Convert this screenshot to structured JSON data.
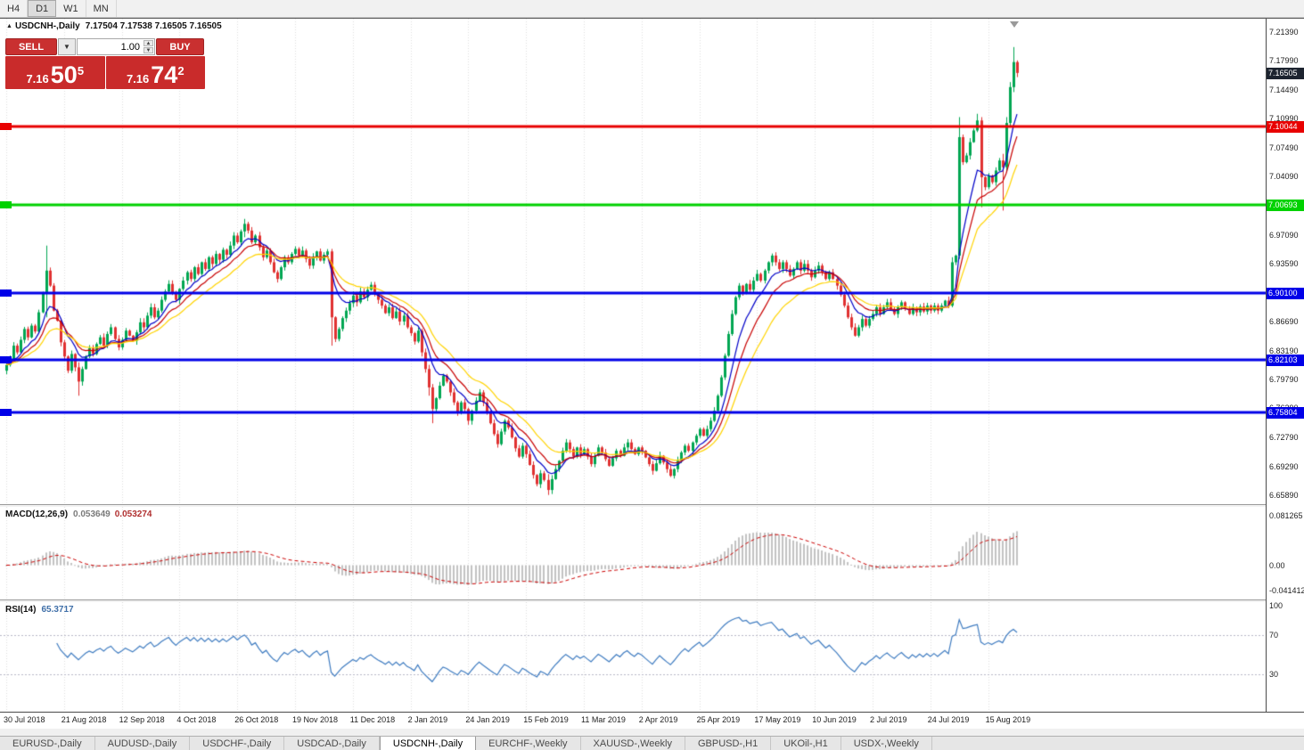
{
  "toolbar": {
    "timeframes": [
      {
        "label": "H4",
        "active": false
      },
      {
        "label": "D1",
        "active": true
      },
      {
        "label": "W1",
        "active": false
      },
      {
        "label": "MN",
        "active": false
      }
    ]
  },
  "chart_header": {
    "symbol": "USDCNH-,Daily",
    "ohlc_text": "7.17504 7.17538 7.16505 7.16505"
  },
  "trade_panel": {
    "sell_label": "SELL",
    "buy_label": "BUY",
    "volume": "1.00",
    "sell_price_small": "7.16",
    "sell_price_big": "50",
    "sell_price_sup": "5",
    "buy_price_small": "7.16",
    "buy_price_big": "74",
    "buy_price_sup": "2"
  },
  "current_price_badge": {
    "label": "7.16505",
    "price": 7.16505,
    "bg": "#1d2430"
  },
  "tabs": [
    {
      "label": "EURUSD-,Daily",
      "active": false
    },
    {
      "label": "AUDUSD-,Daily",
      "active": false
    },
    {
      "label": "USDCHF-,Daily",
      "active": false
    },
    {
      "label": "USDCAD-,Daily",
      "active": false
    },
    {
      "label": "USDCNH-,Daily",
      "active": true
    },
    {
      "label": "EURCHF-,Weekly",
      "active": false
    },
    {
      "label": "XAUUSD-,Weekly",
      "active": false
    },
    {
      "label": "GBPUSD-,H1",
      "active": false
    },
    {
      "label": "UKOil-,H1",
      "active": false
    },
    {
      "label": "USDX-,Weekly",
      "active": false
    }
  ],
  "chart_data": {
    "type": "candlestick",
    "symbol": "USDCNH-",
    "timeframe": "Daily",
    "current_ohlc": {
      "open": "7.17504",
      "high": "7.17538",
      "low": "7.16505",
      "close": "7.16505"
    },
    "y_top": 7.23,
    "y_bottom": 6.648,
    "price_ticks": [
      "7.21390",
      "7.17990",
      "7.14490",
      "7.10990",
      "7.07490",
      "7.04090",
      "7.00590",
      "6.97090",
      "6.93590",
      "6.90090",
      "6.86690",
      "6.83190",
      "6.79790",
      "6.76290",
      "6.72790",
      "6.69290",
      "6.65890"
    ],
    "x_ticks": [
      "30 Jul 2018",
      "21 Aug 2018",
      "12 Sep 2018",
      "4 Oct 2018",
      "26 Oct 2018",
      "19 Nov 2018",
      "11 Dec 2018",
      "2 Jan 2019",
      "24 Jan 2019",
      "15 Feb 2019",
      "11 Mar 2019",
      "2 Apr 2019",
      "25 Apr 2019",
      "17 May 2019",
      "10 Jun 2019",
      "2 Jul 2019",
      "24 Jul 2019",
      "15 Aug 2019"
    ],
    "x_tick_interval_bars": 16,
    "up_color": "#00a652",
    "down_color": "#e03131",
    "first_open": 6.808,
    "closes": [
      6.815,
      6.822,
      6.838,
      6.83,
      6.845,
      6.858,
      6.848,
      6.862,
      6.855,
      6.878,
      6.9,
      6.928,
      6.91,
      6.88,
      6.868,
      6.842,
      6.825,
      6.808,
      6.828,
      6.812,
      6.795,
      6.81,
      6.825,
      6.835,
      6.828,
      6.84,
      6.848,
      6.838,
      6.852,
      6.86,
      6.846,
      6.836,
      6.845,
      6.856,
      6.85,
      6.844,
      6.854,
      6.866,
      6.86,
      6.874,
      6.884,
      6.872,
      6.88,
      6.893,
      6.903,
      6.912,
      6.901,
      6.893,
      6.906,
      6.916,
      6.926,
      6.918,
      6.932,
      6.924,
      6.938,
      6.93,
      6.944,
      6.936,
      6.948,
      6.941,
      6.953,
      6.947,
      6.958,
      6.97,
      6.962,
      6.975,
      6.984,
      6.976,
      6.962,
      6.97,
      6.956,
      6.944,
      6.952,
      6.938,
      6.926,
      6.918,
      6.932,
      6.944,
      6.938,
      6.948,
      6.954,
      6.946,
      6.952,
      6.942,
      6.934,
      6.944,
      6.951,
      6.94,
      6.947,
      6.951,
      6.872,
      6.846,
      6.858,
      6.871,
      6.88,
      6.889,
      6.898,
      6.89,
      6.903,
      6.896,
      6.905,
      6.911,
      6.901,
      6.893,
      6.886,
      6.877,
      6.884,
      6.871,
      6.879,
      6.867,
      6.874,
      6.86,
      6.853,
      6.843,
      6.856,
      6.83,
      6.81,
      6.788,
      6.762,
      6.775,
      6.79,
      6.802,
      6.795,
      6.782,
      6.77,
      6.758,
      6.77,
      6.762,
      6.748,
      6.76,
      6.772,
      6.782,
      6.77,
      6.758,
      6.745,
      6.732,
      6.72,
      6.735,
      6.748,
      6.74,
      6.728,
      6.715,
      6.705,
      6.718,
      6.708,
      6.695,
      6.683,
      6.672,
      6.685,
      6.677,
      6.665,
      6.678,
      6.69,
      6.7,
      6.712,
      6.722,
      6.714,
      6.705,
      6.716,
      6.708,
      6.714,
      6.705,
      6.696,
      6.706,
      6.716,
      6.71,
      6.702,
      6.694,
      6.703,
      6.712,
      6.706,
      6.716,
      6.722,
      6.714,
      6.708,
      6.716,
      6.712,
      6.704,
      6.696,
      6.688,
      6.697,
      6.706,
      6.698,
      6.69,
      6.682,
      6.69,
      6.7,
      6.71,
      6.718,
      6.712,
      6.722,
      6.73,
      6.738,
      6.73,
      6.738,
      6.748,
      6.76,
      6.778,
      6.8,
      6.826,
      6.852,
      6.876,
      6.896,
      6.91,
      6.902,
      6.912,
      6.905,
      6.916,
      6.924,
      6.916,
      6.928,
      6.938,
      6.946,
      6.938,
      6.93,
      6.938,
      6.93,
      6.922,
      6.93,
      6.938,
      6.928,
      6.936,
      6.928,
      6.92,
      6.928,
      6.934,
      6.926,
      6.918,
      6.926,
      6.918,
      6.91,
      6.899,
      6.886,
      6.872,
      6.86,
      6.85,
      6.86,
      6.87,
      6.862,
      6.87,
      6.876,
      6.884,
      6.876,
      6.884,
      6.89,
      6.882,
      6.876,
      6.884,
      6.89,
      6.882,
      6.876,
      6.884,
      6.878,
      6.885,
      6.879,
      6.886,
      6.88,
      6.886,
      6.88,
      6.886,
      6.892,
      6.886,
      6.938,
      6.946,
      7.088,
      7.058,
      7.066,
      7.082,
      7.096,
      7.108,
      7.04,
      7.028,
      7.042,
      7.034,
      7.048,
      7.06,
      7.052,
      7.105,
      7.148,
      7.178,
      7.165
    ],
    "range_overrides": {
      "11": [
        6.872,
        6.958
      ],
      "20": [
        6.778,
        6.818
      ],
      "66": [
        6.968,
        6.99
      ],
      "90": [
        6.838,
        6.954
      ],
      "117": [
        6.778,
        6.815
      ],
      "118": [
        6.745,
        6.792
      ],
      "150": [
        6.659,
        6.684
      ],
      "262": [
        6.884,
        6.944
      ],
      "264": [
        6.942,
        7.112
      ],
      "269": [
        7.094,
        7.116
      ],
      "270": [
        7.004,
        7.112
      ],
      "276": [
        7.0,
        7.068
      ],
      "277": [
        7.046,
        7.112
      ],
      "278": [
        7.1,
        7.154
      ],
      "279": [
        7.142,
        7.196
      ],
      "280": [
        7.16,
        7.18
      ]
    },
    "moving_averages": [
      {
        "type": "ema",
        "period": 8,
        "color": "#0000c8"
      },
      {
        "type": "ema",
        "period": 13,
        "color": "#c80000"
      },
      {
        "type": "ema",
        "period": 21,
        "color": "#ffd400"
      }
    ],
    "horizontal_lines": [
      {
        "label": "7.10044",
        "price": 7.10044,
        "color": "#e80000",
        "width": 3
      },
      {
        "label": "7.00693",
        "price": 7.00693,
        "color": "#00d200",
        "width": 3
      },
      {
        "label": "6.90100",
        "price": 6.901,
        "color": "#0000e8",
        "width": 3
      },
      {
        "label": "6.82103",
        "price": 6.82103,
        "color": "#0000e8",
        "width": 3
      },
      {
        "label": "6.75804",
        "price": 6.75804,
        "color": "#0000e8",
        "width": 3
      }
    ],
    "macd": {
      "label": "MACD(12,26,9)",
      "params": [
        12,
        26,
        9
      ],
      "value_main": "0.053649",
      "value_signal": "0.053274",
      "axis_ticks": [
        {
          "label": "0.081265",
          "value": 0.081265
        },
        {
          "label": "0.00",
          "value": 0
        },
        {
          "label": "-0.041412",
          "value": -0.041412
        }
      ],
      "histogram_color": "#c2c2c2",
      "signal_color": "#cc0000"
    },
    "rsi": {
      "label": "RSI(14)",
      "period": 14,
      "value": "65.3717",
      "axis_ticks": [
        {
          "label": "100",
          "value": 100
        },
        {
          "label": "70",
          "value": 70
        },
        {
          "label": "30",
          "value": 30
        }
      ],
      "line_color": "#3f7cc1",
      "level_lines": [
        70,
        30
      ]
    }
  }
}
